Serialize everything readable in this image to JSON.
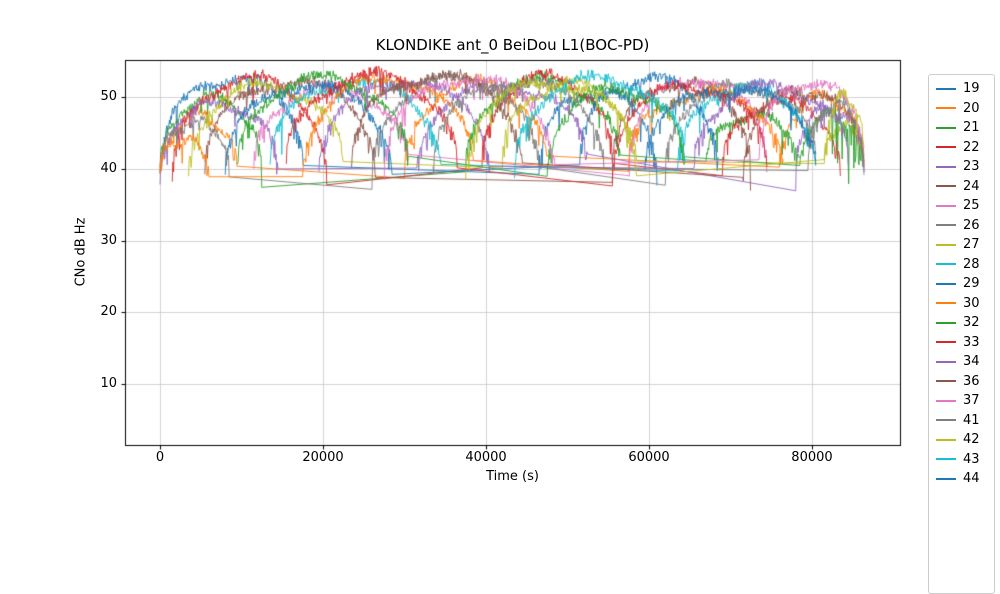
{
  "chart_data": {
    "type": "line",
    "title": "KLONDIKE ant_0 BeiDou L1(BOC-PD)",
    "xlabel": "Time (s)",
    "ylabel": "CNo dB Hz",
    "xlim": [
      -4300,
      90800
    ],
    "ylim": [
      1.5,
      55.2
    ],
    "xticks": [
      0,
      20000,
      40000,
      60000,
      80000
    ],
    "yticks": [
      10,
      20,
      30,
      40,
      50
    ],
    "grid": true,
    "grid_color": "#c8c8c8",
    "spine_color": "#000000",
    "legend_position": "right-outside",
    "legend_edge_color": "#cccccc",
    "noise_seed": 7,
    "series_note": "each arc is [t_start_s, t_end_s, peak_cn0_dbhz, edge_cn0_dbhz, optional_dropout_factor]; values estimated from plot",
    "series": [
      {
        "name": "19",
        "color": "#1f77b4",
        "arcs": [
          [
            200,
            17600,
            52.6,
            40
          ],
          [
            46500,
            61000,
            50.8,
            39
          ]
        ]
      },
      {
        "name": "20",
        "color": "#ff7f0e",
        "arcs": [
          [
            0,
            9500,
            47.5,
            39
          ],
          [
            30000,
            47500,
            52.0,
            39
          ],
          [
            76000,
            86400,
            50.0,
            40
          ]
        ]
      },
      {
        "name": "21",
        "color": "#2ca02c",
        "arcs": [
          [
            0,
            12500,
            50.0,
            39
          ],
          [
            37500,
            56500,
            52.4,
            40
          ],
          [
            67000,
            78500,
            47.5,
            40
          ]
        ]
      },
      {
        "name": "22",
        "color": "#d62728",
        "arcs": [
          [
            1500,
            20500,
            52.6,
            38
          ],
          [
            39500,
            55500,
            53.0,
            40
          ],
          [
            69000,
            83500,
            49.5,
            39
          ]
        ]
      },
      {
        "name": "23",
        "color": "#9467bd",
        "arcs": [
          [
            0,
            14500,
            49.0,
            39
          ],
          [
            31500,
            52500,
            51.6,
            40
          ],
          [
            78000,
            86400,
            48.5,
            40
          ]
        ]
      },
      {
        "name": "24",
        "color": "#8c564b",
        "arcs": [
          [
            5500,
            26500,
            52.2,
            39
          ],
          [
            55500,
            72500,
            52.0,
            40
          ]
        ]
      },
      {
        "name": "25",
        "color": "#e377c2",
        "arcs": [
          [
            11500,
            30500,
            51.2,
            40
          ],
          [
            57500,
            74500,
            52.5,
            40
          ]
        ]
      },
      {
        "name": "26",
        "color": "#7f7f7f",
        "arcs": [
          [
            0,
            8500,
            46.5,
            40
          ],
          [
            26000,
            46500,
            52.6,
            39
          ],
          [
            62000,
            80500,
            51.6,
            40
          ]
        ]
      },
      {
        "name": "27",
        "color": "#bcbd22",
        "arcs": [
          [
            3500,
            22500,
            51.6,
            39
          ],
          [
            42000,
            58500,
            52.0,
            40
          ],
          [
            81500,
            86400,
            46.0,
            40
          ]
        ]
      },
      {
        "name": "28",
        "color": "#17becf",
        "arcs": [
          [
            13500,
            34500,
            52.2,
            40
          ],
          [
            63500,
            80500,
            51.5,
            39
          ]
        ]
      },
      {
        "name": "29",
        "color": "#1f77b4",
        "arcs": [
          [
            8000,
            28500,
            51.6,
            39
          ],
          [
            51500,
            68500,
            52.6,
            40
          ]
        ]
      },
      {
        "name": "30",
        "color": "#ff7f0e",
        "arcs": [
          [
            0,
            6000,
            44.0,
            40
          ],
          [
            17500,
            38500,
            52.6,
            39
          ],
          [
            57500,
            76500,
            50.6,
            40
          ]
        ]
      },
      {
        "name": "32",
        "color": "#2ca02c",
        "arcs": [
          [
            9500,
            30500,
            52.6,
            40
          ],
          [
            47500,
            64500,
            51.2,
            39
          ],
          [
            78500,
            86400,
            47.5,
            40,
            5
          ]
        ]
      },
      {
        "name": "33",
        "color": "#d62728",
        "arcs": [
          [
            15500,
            36500,
            53.0,
            40
          ],
          [
            55500,
            74500,
            51.6,
            39
          ]
        ]
      },
      {
        "name": "34",
        "color": "#9467bd",
        "arcs": [
          [
            19500,
            40500,
            52.2,
            39
          ],
          [
            65500,
            84500,
            51.6,
            40
          ]
        ]
      },
      {
        "name": "36",
        "color": "#8c564b",
        "arcs": [
          [
            23500,
            44500,
            53.0,
            40
          ],
          [
            71500,
            86400,
            51.0,
            39
          ]
        ]
      },
      {
        "name": "37",
        "color": "#e377c2",
        "arcs": [
          [
            27500,
            48500,
            52.6,
            39
          ],
          [
            73500,
            86400,
            52.0,
            41
          ]
        ]
      },
      {
        "name": "41",
        "color": "#7f7f7f",
        "arcs": [
          [
            33500,
            54500,
            52.2,
            40
          ],
          [
            79500,
            86400,
            49.0,
            40
          ]
        ]
      },
      {
        "name": "42",
        "color": "#bcbd22",
        "arcs": [
          [
            37500,
            58500,
            52.0,
            39
          ],
          [
            81500,
            86400,
            50.0,
            41
          ]
        ]
      },
      {
        "name": "43",
        "color": "#17becf",
        "arcs": [
          [
            43500,
            64500,
            52.6,
            40
          ]
        ]
      },
      {
        "name": "44",
        "color": "#1f77b4",
        "arcs": [
          [
            59500,
            80500,
            51.2,
            40
          ]
        ]
      }
    ]
  }
}
